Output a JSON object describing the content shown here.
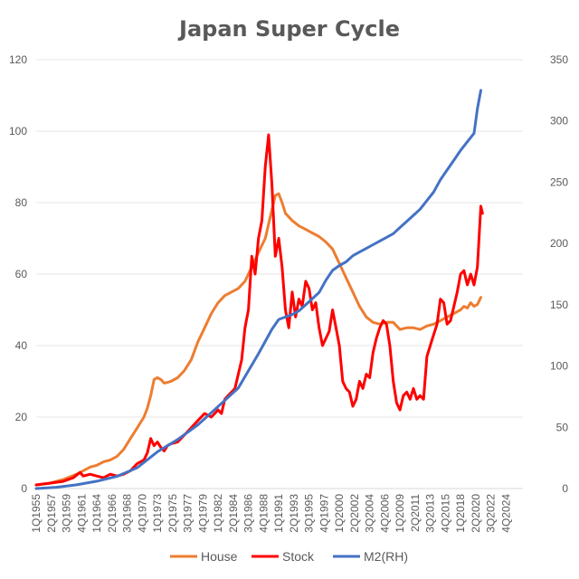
{
  "chart_data": {
    "type": "line",
    "title": "Japan Super Cycle",
    "xlabel": "",
    "ylabel": "",
    "y_left": {
      "min": 0,
      "max": 120,
      "ticks": [
        0,
        20,
        40,
        60,
        80,
        100,
        120
      ]
    },
    "y_right": {
      "min": 0,
      "max": 350,
      "ticks": [
        0,
        50,
        100,
        150,
        200,
        250,
        300,
        350
      ]
    },
    "x_range": [
      1955.0,
      2027.25
    ],
    "x_tick_labels": [
      "1Q1955",
      "2Q1957",
      "3Q1959",
      "4Q1961",
      "1Q1964",
      "2Q1966",
      "3Q1968",
      "4Q1970",
      "1Q1973",
      "2Q1975",
      "3Q1977",
      "4Q1979",
      "1Q1982",
      "2Q1984",
      "3Q1986",
      "4Q1988",
      "1Q1991",
      "2Q1993",
      "3Q1995",
      "4Q1997",
      "1Q2000",
      "2Q2002",
      "3Q2004",
      "4Q2006",
      "1Q2009",
      "2Q2011",
      "3Q2013",
      "4Q2015",
      "1Q2018",
      "2Q2020",
      "3Q2022",
      "4Q2024"
    ],
    "grid": "horizontal",
    "legend_position": "bottom",
    "series": [
      {
        "name": "House",
        "axis": "left",
        "color": "#ED7D31",
        "x": [
          1955.0,
          1957.0,
          1959.0,
          1961.0,
          1962.0,
          1963.0,
          1964.0,
          1965.0,
          1966.0,
          1967.0,
          1968.0,
          1969.0,
          1970.0,
          1971.0,
          1971.5,
          1972.0,
          1972.5,
          1973.0,
          1973.5,
          1974.0,
          1974.5,
          1975.0,
          1976.0,
          1977.0,
          1978.0,
          1979.0,
          1980.0,
          1981.0,
          1982.0,
          1983.0,
          1984.0,
          1985.0,
          1986.0,
          1987.0,
          1988.0,
          1989.0,
          1990.0,
          1990.5,
          1991.0,
          1991.5,
          1992.0,
          1993.0,
          1994.0,
          1995.0,
          1996.0,
          1997.0,
          1998.0,
          1999.0,
          2000.0,
          2001.0,
          2002.0,
          2003.0,
          2004.0,
          2005.0,
          2006.0,
          2007.0,
          2008.0,
          2009.0,
          2010.0,
          2011.0,
          2012.0,
          2013.0,
          2014.0,
          2015.0,
          2016.0,
          2017.0,
          2018.0,
          2018.5,
          2019.0,
          2019.5,
          2020.0,
          2020.5,
          2021.0
        ],
        "values": [
          1.0,
          1.5,
          2.5,
          4.0,
          5.0,
          6.0,
          6.5,
          7.5,
          8.0,
          9.0,
          11.0,
          14.0,
          17.0,
          20.0,
          22.5,
          26.0,
          30.5,
          31.0,
          30.5,
          29.5,
          29.7,
          30.0,
          31.0,
          33.0,
          36.0,
          41.0,
          45.0,
          49.0,
          52.0,
          54.0,
          55.0,
          56.0,
          58.0,
          62.0,
          66.0,
          70.0,
          78.0,
          82.0,
          82.5,
          80.0,
          77.0,
          75.0,
          73.5,
          72.5,
          71.5,
          70.5,
          69.0,
          67.0,
          63.0,
          59.0,
          55.0,
          51.0,
          48.0,
          46.5,
          46.0,
          46.5,
          46.5,
          44.5,
          45.0,
          45.0,
          44.5,
          45.5,
          46.0,
          47.0,
          48.0,
          49.0,
          50.0,
          51.0,
          50.5,
          52.0,
          51.0,
          51.5,
          53.5
        ]
      },
      {
        "name": "Stock",
        "axis": "left",
        "color": "#FF0000",
        "x": [
          1955.0,
          1957.0,
          1959.0,
          1960.5,
          1961.5,
          1962.0,
          1963.0,
          1964.0,
          1965.0,
          1966.0,
          1967.0,
          1968.0,
          1969.0,
          1970.0,
          1971.0,
          1971.5,
          1972.0,
          1972.5,
          1973.0,
          1973.5,
          1974.0,
          1974.5,
          1975.0,
          1976.0,
          1977.0,
          1978.0,
          1979.0,
          1980.0,
          1981.0,
          1982.0,
          1982.5,
          1983.0,
          1983.5,
          1984.0,
          1984.5,
          1985.0,
          1985.5,
          1986.0,
          1986.5,
          1987.0,
          1987.5,
          1988.0,
          1988.5,
          1989.0,
          1989.5,
          1990.0,
          1990.5,
          1991.0,
          1991.5,
          1992.0,
          1992.5,
          1993.0,
          1993.5,
          1994.0,
          1994.5,
          1995.0,
          1995.5,
          1996.0,
          1996.5,
          1997.0,
          1997.5,
          1998.0,
          1998.5,
          1999.0,
          1999.5,
          2000.0,
          2000.5,
          2001.0,
          2001.5,
          2002.0,
          2002.5,
          2003.0,
          2003.5,
          2004.0,
          2004.5,
          2005.0,
          2005.5,
          2006.0,
          2006.5,
          2007.0,
          2007.5,
          2008.0,
          2008.5,
          2009.0,
          2009.5,
          2010.0,
          2010.5,
          2011.0,
          2011.5,
          2012.0,
          2012.5,
          2013.0,
          2013.5,
          2014.0,
          2014.5,
          2015.0,
          2015.5,
          2016.0,
          2016.5,
          2017.0,
          2017.5,
          2018.0,
          2018.5,
          2019.0,
          2019.5,
          2020.0,
          2020.5,
          2021.0,
          2021.25
        ],
        "values": [
          1.0,
          1.5,
          2.0,
          3.0,
          4.5,
          3.5,
          4.0,
          3.5,
          3.0,
          4.0,
          3.5,
          4.0,
          5.0,
          7.0,
          8.0,
          10.0,
          14.0,
          12.0,
          13.0,
          11.5,
          10.5,
          12.0,
          12.5,
          13.0,
          15.0,
          17.0,
          19.0,
          21.0,
          20.0,
          22.0,
          21.0,
          25.0,
          26.0,
          27.0,
          28.0,
          32.0,
          36.0,
          45.0,
          50.0,
          65.0,
          60.0,
          70.0,
          75.0,
          90.0,
          99.0,
          85.0,
          65.0,
          70.0,
          62.0,
          50.0,
          45.0,
          55.0,
          48.0,
          53.0,
          51.0,
          58.0,
          56.0,
          50.0,
          52.0,
          45.0,
          40.0,
          42.0,
          44.0,
          50.0,
          45.0,
          40.0,
          30.0,
          28.0,
          27.0,
          23.0,
          25.0,
          30.0,
          28.0,
          32.0,
          31.0,
          38.0,
          42.0,
          45.0,
          47.0,
          46.0,
          40.0,
          30.0,
          24.0,
          22.0,
          26.0,
          27.0,
          25.0,
          28.0,
          25.0,
          26.0,
          25.0,
          37.0,
          40.0,
          43.0,
          46.0,
          53.0,
          52.0,
          46.0,
          47.0,
          51.0,
          55.0,
          60.0,
          61.0,
          57.0,
          60.0,
          57.0,
          62.0,
          79.0,
          77.0
        ]
      },
      {
        "name": "M2(RH)",
        "axis": "right",
        "color": "#4472C4",
        "x": [
          1955.0,
          1958.0,
          1961.0,
          1964.0,
          1967.0,
          1970.0,
          1973.0,
          1976.0,
          1979.0,
          1982.0,
          1985.0,
          1988.0,
          1990.0,
          1991.0,
          1992.0,
          1993.0,
          1994.0,
          1995.0,
          1996.0,
          1997.0,
          1998.0,
          1999.0,
          2000.0,
          2001.0,
          2002.0,
          2003.0,
          2004.0,
          2005.0,
          2006.0,
          2007.0,
          2008.0,
          2009.0,
          2010.0,
          2011.0,
          2012.0,
          2013.0,
          2014.0,
          2015.0,
          2016.0,
          2017.0,
          2018.0,
          2019.0,
          2020.0,
          2020.5,
          2021.0
        ],
        "values": [
          0.0,
          1.0,
          3.0,
          6.0,
          10.0,
          17.0,
          30.0,
          40.0,
          52.0,
          67.0,
          82.0,
          110.0,
          130.0,
          138.0,
          140.0,
          142.0,
          145.0,
          150.0,
          155.0,
          160.0,
          170.0,
          178.0,
          182.0,
          185.0,
          190.0,
          193.0,
          196.0,
          199.0,
          202.0,
          205.0,
          208.0,
          213.0,
          218.0,
          223.0,
          228.0,
          235.0,
          242.0,
          252.0,
          260.0,
          268.0,
          276.0,
          283.0,
          290.0,
          310.0,
          325.0
        ]
      }
    ]
  }
}
